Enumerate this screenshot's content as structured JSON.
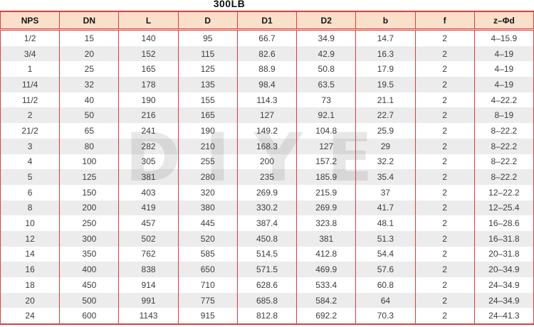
{
  "title": "300LB",
  "watermark": "DIYE",
  "colors": {
    "border_red": "#e23b3b",
    "header_bg": "#fadfca",
    "row_alt_gray": "#ececec",
    "header_text": "#141414",
    "cell_text": "#3d3d3d",
    "watermark_gray": "#dedede"
  },
  "table": {
    "columns": [
      "NPS",
      "DN",
      "L",
      "D",
      "D1",
      "D2",
      "b",
      "f",
      "z–Φd"
    ],
    "rows": [
      [
        "1/2",
        "15",
        "140",
        "95",
        "66.7",
        "34.9",
        "14.7",
        "2",
        "4–15.9"
      ],
      [
        "3/4",
        "20",
        "152",
        "115",
        "82.6",
        "42.9",
        "16.3",
        "2",
        "4–19"
      ],
      [
        "1",
        "25",
        "165",
        "125",
        "88.9",
        "50.8",
        "17.9",
        "2",
        "4–19"
      ],
      [
        "11/4",
        "32",
        "178",
        "135",
        "98.4",
        "63.5",
        "19.5",
        "2",
        "4–19"
      ],
      [
        "11/2",
        "40",
        "190",
        "155",
        "114.3",
        "73",
        "21.1",
        "2",
        "4–22.2"
      ],
      [
        "2",
        "50",
        "216",
        "165",
        "127",
        "92.1",
        "22.7",
        "2",
        "8–19"
      ],
      [
        "21/2",
        "65",
        "241",
        "190",
        "149.2",
        "104.8",
        "25.9",
        "2",
        "8–22.2"
      ],
      [
        "3",
        "80",
        "282",
        "210",
        "168.3",
        "127",
        "29",
        "2",
        "8–22.2"
      ],
      [
        "4",
        "100",
        "305",
        "255",
        "200",
        "157.2",
        "32.2",
        "2",
        "8–22.2"
      ],
      [
        "5",
        "125",
        "381",
        "280",
        "235",
        "185.9",
        "35.4",
        "2",
        "8–22.2"
      ],
      [
        "6",
        "150",
        "403",
        "320",
        "269.9",
        "215.9",
        "37",
        "2",
        "12–22.2"
      ],
      [
        "8",
        "200",
        "419",
        "380",
        "330.2",
        "269.9",
        "41.7",
        "2",
        "12–25.4"
      ],
      [
        "10",
        "250",
        "457",
        "445",
        "387.4",
        "323.8",
        "48.1",
        "2",
        "16–28.6"
      ],
      [
        "12",
        "300",
        "502",
        "520",
        "450.8",
        "381",
        "51.3",
        "2",
        "16–31.8"
      ],
      [
        "14",
        "350",
        "762",
        "585",
        "514.5",
        "412.8",
        "54.4",
        "2",
        "20–31.8"
      ],
      [
        "16",
        "400",
        "838",
        "650",
        "571.5",
        "469.9",
        "57.6",
        "2",
        "20–34.9"
      ],
      [
        "18",
        "450",
        "914",
        "710",
        "628.6",
        "533.4",
        "60.8",
        "2",
        "24–34.9"
      ],
      [
        "20",
        "500",
        "991",
        "775",
        "685.8",
        "584.2",
        "64",
        "2",
        "24–34.9"
      ],
      [
        "24",
        "600",
        "1143",
        "915",
        "812.8",
        "692.2",
        "70.3",
        "2",
        "24–41.3"
      ]
    ]
  }
}
